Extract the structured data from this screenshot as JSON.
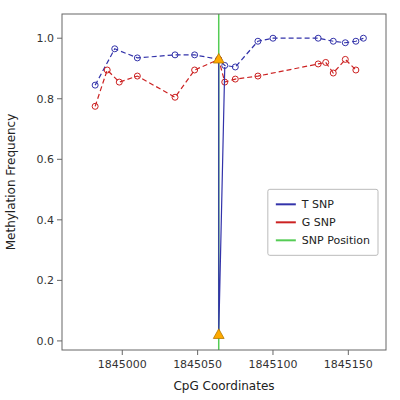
{
  "chart_data": {
    "type": "line",
    "xlabel": "CpG Coordinates",
    "ylabel": "Methylation Frequency",
    "xlim": [
      1844960,
      1845175
    ],
    "ylim": [
      -0.03,
      1.08
    ],
    "xticks": [
      1845000,
      1845050,
      1845100,
      1845150
    ],
    "yticks": [
      {
        "value": 0.0,
        "label": "0.0"
      },
      0.2,
      0.4,
      0.6,
      0.8,
      {
        "value": 1.0,
        "label": "1.0"
      }
    ],
    "grid": false,
    "legend": "right",
    "series": [
      {
        "name": "T SNP",
        "color": "#3333aa",
        "line_style": "dashed",
        "marker": "circle",
        "x": [
          1844982,
          1844995,
          1845010,
          1845035,
          1845048,
          1845064,
          1845068,
          1845075,
          1845090,
          1845100,
          1845130,
          1845140,
          1845148,
          1845155,
          1845160
        ],
        "values": [
          0.845,
          0.965,
          0.935,
          0.945,
          0.945,
          0.93,
          0.91,
          0.905,
          0.99,
          1.0,
          1.0,
          0.99,
          0.985,
          0.99,
          1.0
        ]
      },
      {
        "name": "G SNP",
        "color": "#cc2222",
        "line_style": "dashed",
        "marker": "circle",
        "x": [
          1844982,
          1844990,
          1844998,
          1845010,
          1845035,
          1845048,
          1845064,
          1845068,
          1845075,
          1845090,
          1845130,
          1845135,
          1845140,
          1845148,
          1845155
        ],
        "values": [
          0.775,
          0.895,
          0.855,
          0.875,
          0.805,
          0.895,
          0.93,
          0.855,
          0.865,
          0.875,
          0.915,
          0.92,
          0.885,
          0.93,
          0.895
        ]
      },
      {
        "color": "#3333aa",
        "line_style": "solid",
        "x": [
          1845064,
          1845064,
          1845068
        ],
        "values": [
          0.93,
          0.02,
          0.905
        ]
      },
      {
        "type": "scatter",
        "color": "#ffaa00",
        "marker": "triangle",
        "x": [
          1845064,
          1845064
        ],
        "values": [
          0.93,
          0.02
        ]
      },
      {
        "name": "SNP Position",
        "type": "vline",
        "color": "#55cc55",
        "x": [
          1845064
        ]
      }
    ]
  }
}
